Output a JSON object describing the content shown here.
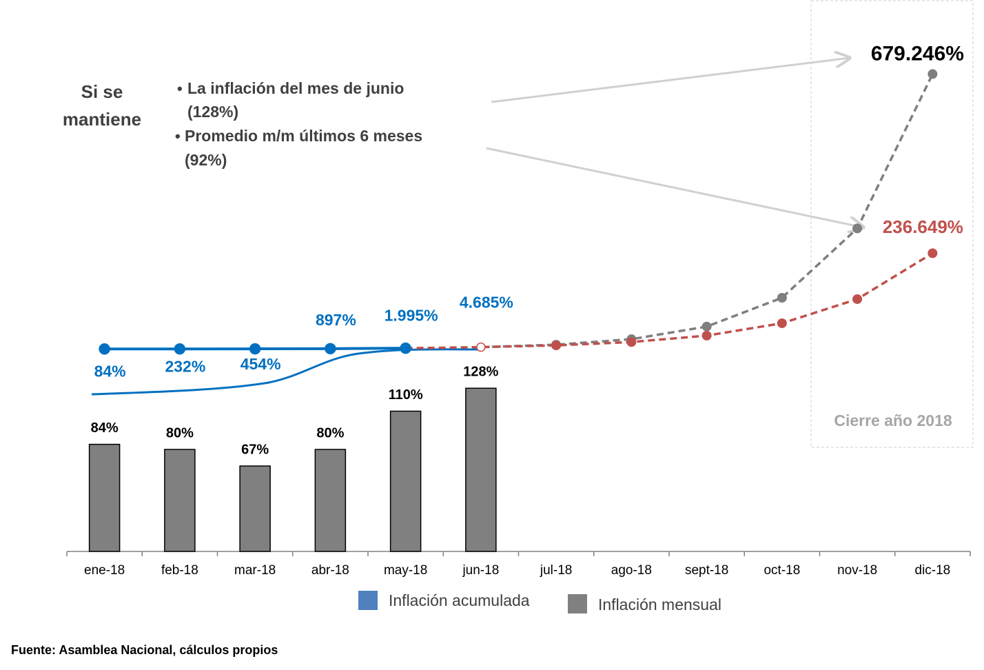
{
  "chart_data": {
    "type": "bar-line",
    "categories": [
      "ene-18",
      "feb-18",
      "mar-18",
      "abr-18",
      "may-18",
      "jun-18",
      "jul-18",
      "ago-18",
      "sept-18",
      "oct-18",
      "nov-18",
      "dic-18"
    ],
    "ylim": [
      0,
      400
    ],
    "y2lim": [
      -500000,
      760000
    ],
    "series": [
      {
        "name": "Inflación mensual",
        "type": "bar",
        "color": "#808080",
        "values": [
          84,
          80,
          67,
          80,
          110,
          128,
          null,
          null,
          null,
          null,
          null,
          null
        ],
        "value_labels": [
          "84%",
          "80%",
          "67%",
          "80%",
          "110%",
          "128%",
          null,
          null,
          null,
          null,
          null,
          null
        ]
      },
      {
        "name": "Inflación acumulada",
        "type": "line",
        "axis": "y2",
        "color": "#0070c0",
        "values": [
          84,
          232,
          454,
          897,
          1995,
          4685,
          null,
          null,
          null,
          null,
          null,
          null
        ],
        "value_labels": [
          "84%",
          "232%",
          "454%",
          "897%",
          "1.995%",
          "4.685%",
          null,
          null,
          null,
          null,
          null,
          null
        ]
      },
      {
        "type": "line",
        "axis": "y2",
        "color": "#7f7f7f",
        "dashed": true,
        "values": [
          null,
          null,
          null,
          null,
          null,
          4685,
          10682,
          24355,
          55530,
          126608,
          297915,
          679246
        ],
        "value_labels": [
          null,
          null,
          null,
          null,
          null,
          null,
          null,
          null,
          null,
          null,
          null,
          "679.246%"
        ]
      },
      {
        "type": "line",
        "axis": "y2",
        "color": "#c0504d",
        "dashed": true,
        "values": [
          null,
          null,
          null,
          null,
          1995,
          4685,
          8995,
          17271,
          33160,
          63667,
          123255,
          236649
        ],
        "value_labels": [
          null,
          null,
          null,
          null,
          null,
          null,
          null,
          null,
          null,
          null,
          null,
          "236.649%"
        ]
      }
    ],
    "annotation": [
      "Si se",
      "mantiene"
    ],
    "bullets": [
      [
        "La inflación del mes de junio",
        "(128%)"
      ],
      [
        "Promedio m/m últimos 6 meses",
        "(92%)"
      ]
    ],
    "box_label": "Cierre año 2018",
    "source": "Fuente: Asamblea Nacional, cálculos propios"
  }
}
